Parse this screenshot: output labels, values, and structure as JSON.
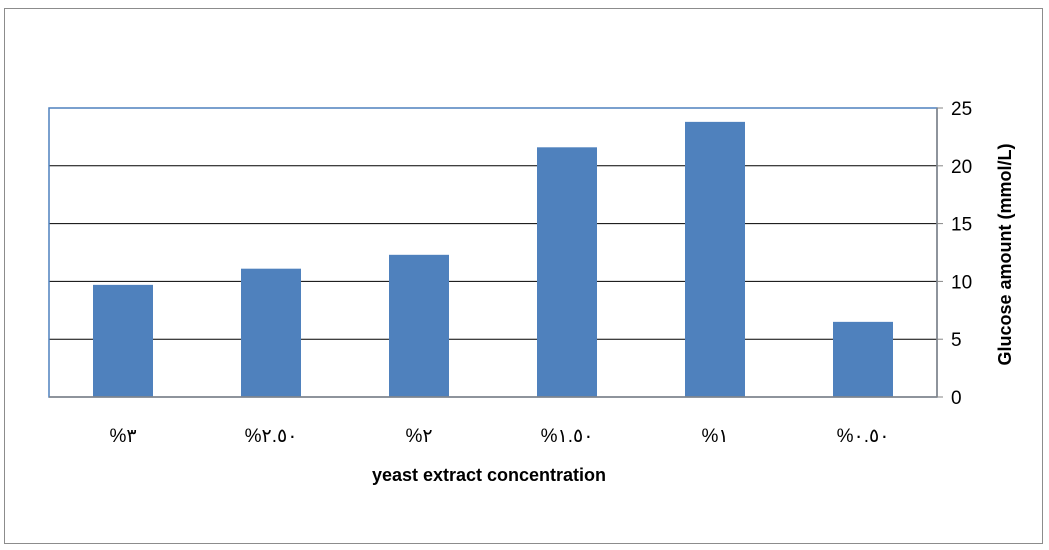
{
  "chart_data": {
    "type": "bar",
    "categories": [
      "%٣",
      "%٢.٥٠",
      "%٢",
      "%١.٥٠",
      "%١",
      "%٠.٥٠"
    ],
    "values": [
      9.7,
      11.1,
      12.3,
      21.6,
      23.8,
      6.5
    ],
    "title": "",
    "xlabel": "yeast extract concentration",
    "ylabel": "Glucose amount (mmol/L)",
    "ylim": [
      0,
      25
    ],
    "yticks": [
      "0",
      "5",
      "10",
      "15",
      "20",
      "25"
    ],
    "y_axis_side": "right",
    "grid": true,
    "legend": "none",
    "bar_color": "#4f81bd",
    "plot_border_color": "#4f81bd",
    "gridline_color": "#000000"
  }
}
